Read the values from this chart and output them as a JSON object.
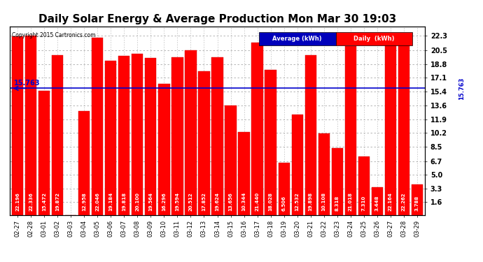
{
  "title": "Daily Solar Energy & Average Production Mon Mar 30 19:03",
  "copyright": "Copyright 2015 Cartronics.com",
  "categories": [
    "02-27",
    "02-28",
    "03-01",
    "03-02",
    "03-03",
    "03-04",
    "03-05",
    "03-06",
    "03-07",
    "03-08",
    "03-09",
    "03-10",
    "03-11",
    "03-12",
    "03-13",
    "03-14",
    "03-15",
    "03-16",
    "03-17",
    "03-18",
    "03-19",
    "03-20",
    "03-21",
    "03-22",
    "03-23",
    "03-24",
    "03-25",
    "03-26",
    "03-27",
    "03-28",
    "03-29"
  ],
  "values": [
    22.196,
    22.336,
    15.472,
    19.872,
    0.0,
    12.958,
    22.046,
    19.184,
    19.818,
    20.1,
    19.564,
    16.296,
    19.594,
    20.512,
    17.852,
    19.624,
    13.656,
    10.344,
    21.44,
    18.028,
    6.506,
    12.532,
    19.898,
    10.108,
    8.318,
    21.018,
    7.31,
    3.448,
    22.164,
    22.262,
    3.788
  ],
  "average": 15.763,
  "bar_color": "#ff0000",
  "average_line_color": "#0000cc",
  "background_color": "#ffffff",
  "plot_bg_color": "#ffffff",
  "grid_color": "#aaaaaa",
  "title_fontsize": 11,
  "ytick_values": [
    1.6,
    3.3,
    5.0,
    6.7,
    8.5,
    10.2,
    11.9,
    13.6,
    15.4,
    17.1,
    18.8,
    20.5,
    22.3
  ],
  "ytick_labels": [
    "1.6",
    "3.3",
    "5.0",
    "6.7",
    "8.5",
    "10.2",
    "11.9",
    "13.6",
    "15.4",
    "17.1",
    "18.8",
    "20.5",
    "22.3"
  ],
  "ymax": 23.5,
  "ymin": 0.0,
  "avg_label": "15.763",
  "legend_avg_color": "#0000bb",
  "legend_daily_color": "#ff0000",
  "legend_avg_text": "Average (kWh)",
  "legend_daily_text": "Daily  (kWh)"
}
